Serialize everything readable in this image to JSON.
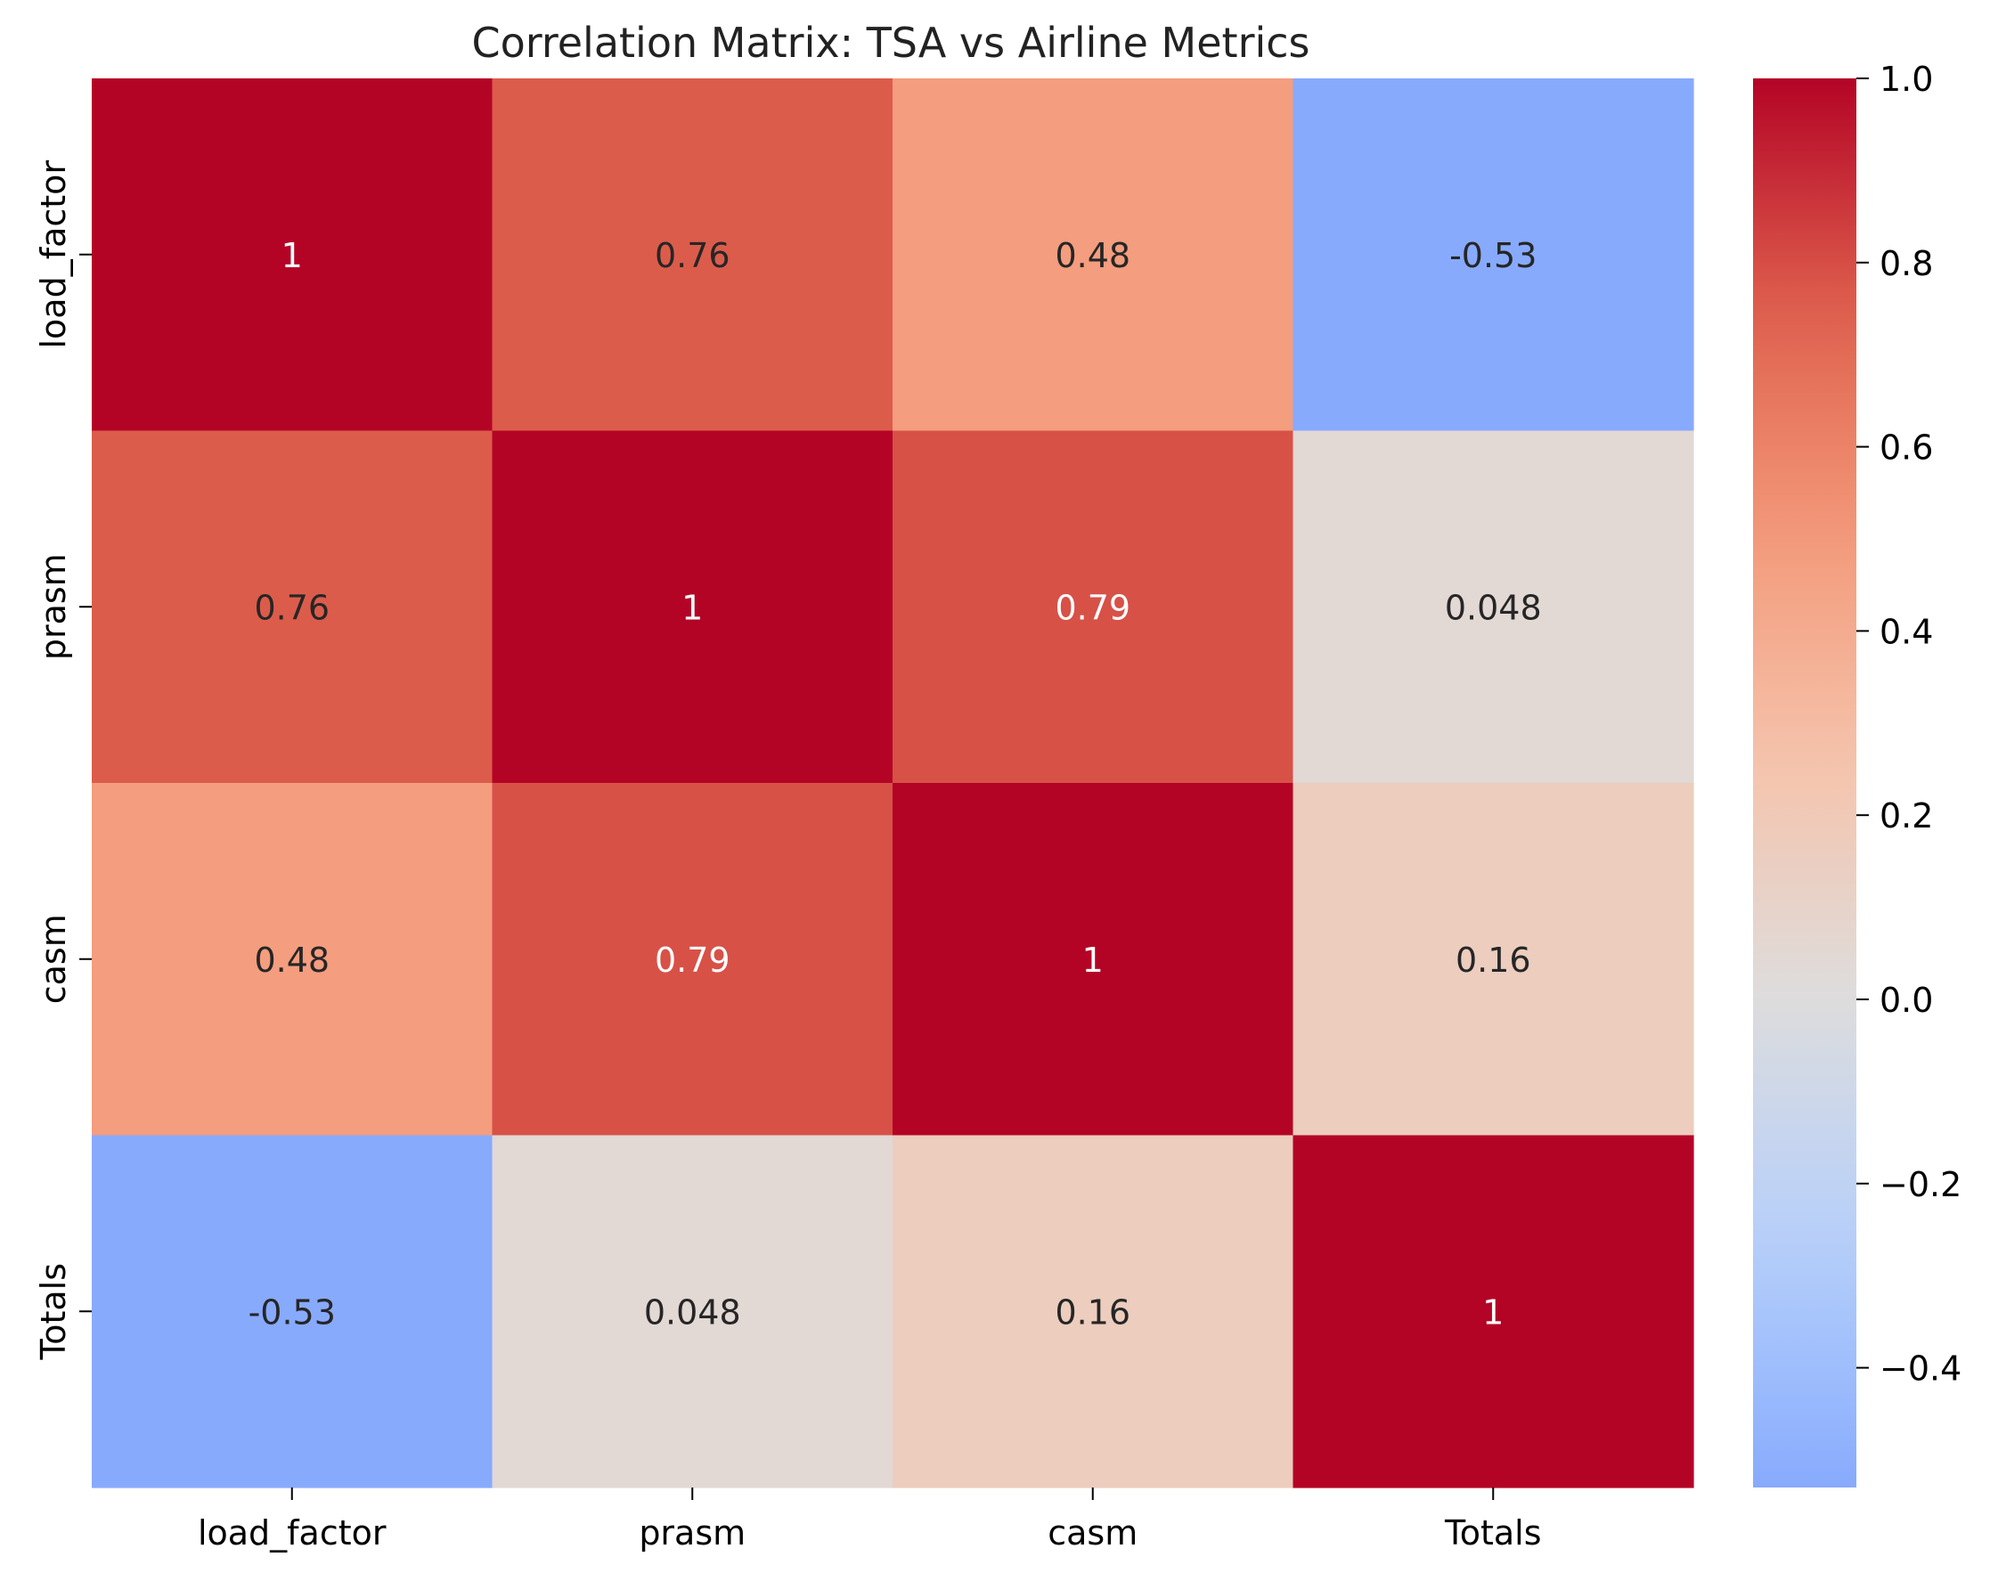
{
  "chart_data": {
    "type": "heatmap",
    "title": "Correlation Matrix: TSA vs Airline Metrics",
    "xlabel": "",
    "ylabel": "",
    "x_categories": [
      "load_factor",
      "prasm",
      "casm",
      "Totals"
    ],
    "y_categories": [
      "load_factor",
      "prasm",
      "casm",
      "Totals"
    ],
    "values": [
      [
        1,
        0.76,
        0.48,
        -0.53
      ],
      [
        0.76,
        1,
        0.79,
        0.048
      ],
      [
        0.48,
        0.79,
        1,
        0.16
      ],
      [
        -0.53,
        0.048,
        0.16,
        1
      ]
    ],
    "annotations": [
      [
        "1",
        "0.76",
        "0.48",
        "-0.53"
      ],
      [
        "0.76",
        "1",
        "0.79",
        "0.048"
      ],
      [
        "0.48",
        "0.79",
        "1",
        "0.16"
      ],
      [
        "-0.53",
        "0.048",
        "0.16",
        "1"
      ]
    ],
    "colormap": "coolwarm",
    "colorbar": {
      "range": [
        -0.53,
        1.0
      ],
      "center": 0,
      "ticks": [
        -0.4,
        -0.2,
        0.0,
        0.2,
        0.4,
        0.6,
        0.8,
        1.0
      ],
      "tick_labels": [
        "−0.4",
        "−0.2",
        "0.0",
        "0.2",
        "0.4",
        "0.6",
        "0.8",
        "1.0"
      ]
    },
    "grid": false
  }
}
